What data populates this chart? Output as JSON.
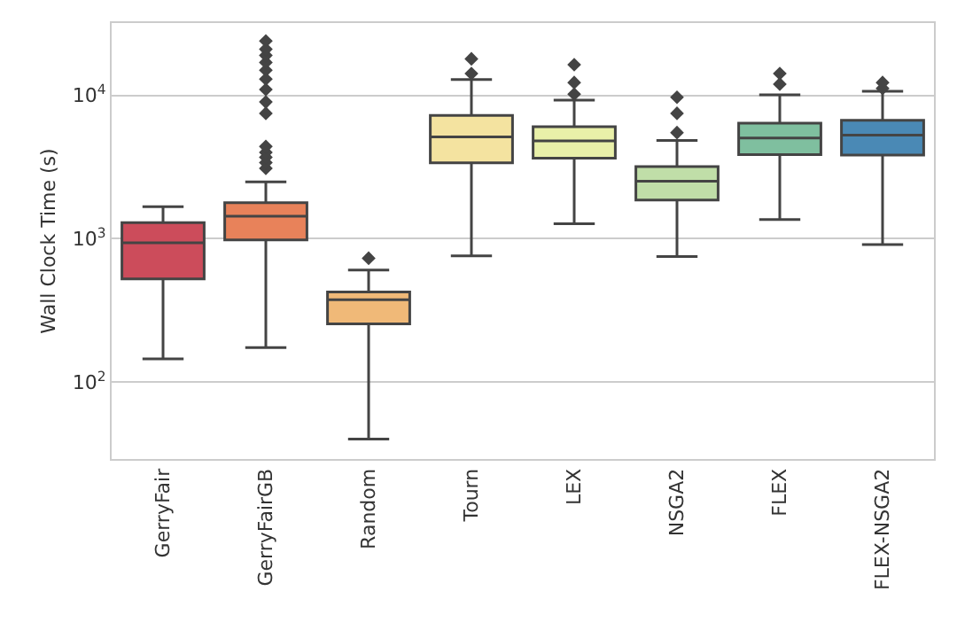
{
  "chart_data": {
    "type": "box",
    "ylabel": "Wall Clock Time (s)",
    "categories": [
      "GerryFair",
      "GerryFairGB",
      "Random",
      "Tourn",
      "LEX",
      "NSGA2",
      "FLEX",
      "FLEX-NSGA2"
    ],
    "colors": [
      "#cc4c5b",
      "#e8825a",
      "#f0b978",
      "#f4e3a0",
      "#e9f0a9",
      "#c0dea8",
      "#7fbf9f",
      "#4a89b5"
    ],
    "boxes": [
      {
        "low": 145,
        "q1": 524,
        "median": 935,
        "q3": 1295,
        "high": 1670
      },
      {
        "low": 174,
        "q1": 982,
        "median": 1436,
        "q3": 1786,
        "high": 2495,
        "outliers": [
          3100,
          3400,
          3700,
          4000,
          4400,
          7500,
          9000,
          11000,
          13000,
          15000,
          17000,
          19000,
          21000,
          24000
        ]
      },
      {
        "low": 40,
        "q1": 254,
        "median": 375,
        "q3": 424,
        "high": 604,
        "outliers": [
          731
        ]
      },
      {
        "low": 760,
        "q1": 3380,
        "median": 5140,
        "q3": 7240,
        "high": 12900,
        "outliers": [
          14200,
          18000
        ]
      },
      {
        "low": 1270,
        "q1": 3650,
        "median": 4810,
        "q3": 6040,
        "high": 9270,
        "outliers": [
          10200,
          12300,
          16400
        ]
      },
      {
        "low": 750,
        "q1": 1860,
        "median": 2520,
        "q3": 3190,
        "high": 4850,
        "outliers": [
          5500,
          7500,
          9700
        ]
      },
      {
        "low": 1360,
        "q1": 3860,
        "median": 5040,
        "q3": 6400,
        "high": 10100,
        "outliers": [
          12000,
          14200
        ]
      },
      {
        "low": 910,
        "q1": 3830,
        "median": 5280,
        "q3": 6700,
        "high": 10700,
        "outliers": [
          11200,
          12300
        ]
      }
    ],
    "log": true,
    "ylim": [
      29,
      32000
    ],
    "yticks": [
      {
        "value": 100,
        "label": "10$^{2}$"
      },
      {
        "value": 1000,
        "label": "10$^{3}$"
      },
      {
        "value": 10000,
        "label": "10$^{4}$"
      }
    ],
    "grid": "y",
    "marker": "diamond"
  }
}
